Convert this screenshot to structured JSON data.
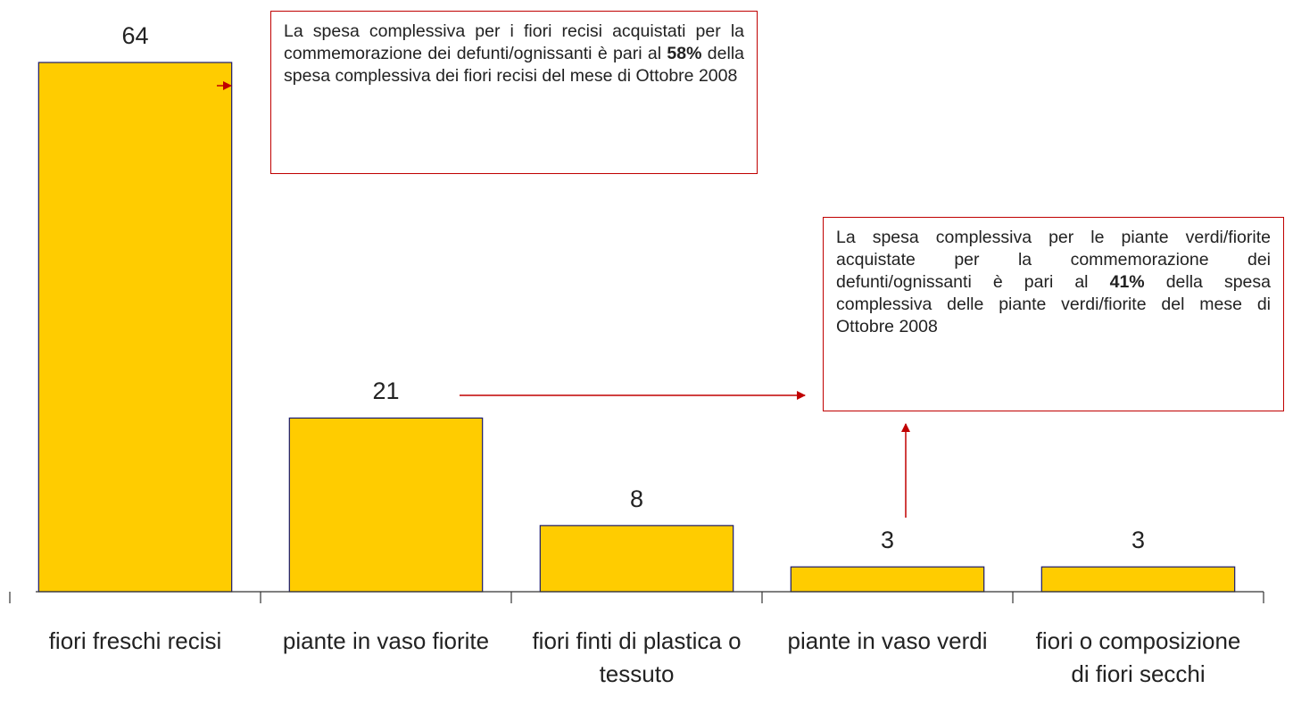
{
  "chart_data": {
    "type": "bar",
    "categories": [
      "fiori freschi recisi",
      "piante in vaso fiorite",
      "fiori finti di plastica o tessuto",
      "piante in vaso verdi",
      "fiori o composizione di fiori secchi"
    ],
    "values": [
      64,
      21,
      8,
      3,
      3
    ],
    "color": "#ffcc00",
    "annotations": [
      {
        "parts": [
          "La spesa complessiva per i fiori recisi acquistati per la commemorazione dei defunti/ognissanti è pari al ",
          "58%",
          " della spesa complessiva dei fiori recisi del mese di Ottobre 2008"
        ]
      },
      {
        "parts": [
          "La spesa complessiva per le piante verdi/fiorite acquistate per la commemorazione dei defunti/ognissanti è pari al ",
          "41%",
          " della spesa complessiva delle piante verdi/fiorite del mese di Ottobre 2008"
        ]
      }
    ]
  }
}
